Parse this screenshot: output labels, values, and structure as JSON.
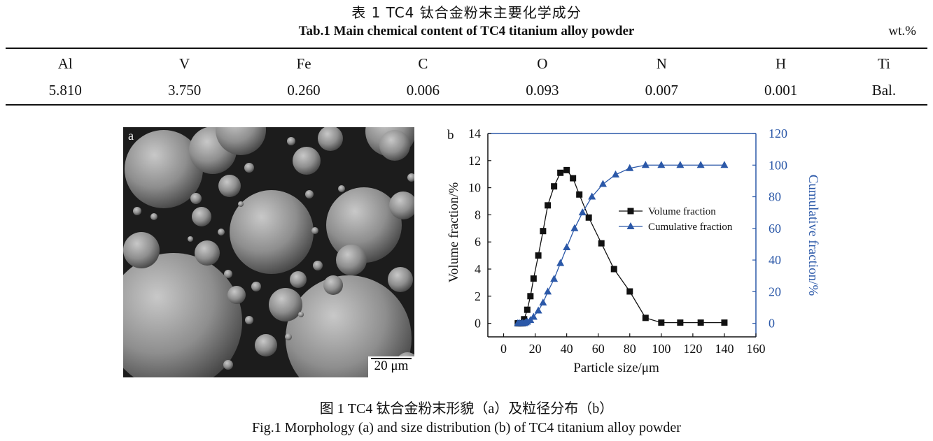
{
  "table": {
    "caption_cn": "表 1   TC4 钛合金粉末主要化学成分",
    "caption_en": "Tab.1 Main chemical content of TC4 titanium alloy powder",
    "unit": "wt.%",
    "headers": [
      "Al",
      "V",
      "Fe",
      "C",
      "O",
      "N",
      "H",
      "Ti"
    ],
    "values": [
      "5.810",
      "3.750",
      "0.260",
      "0.006",
      "0.093",
      "0.007",
      "0.001",
      "Bal."
    ]
  },
  "panel_a": {
    "label": "a",
    "scale_bar": "20 μm"
  },
  "chart_data": {
    "type": "line",
    "panel_label": "b",
    "xlabel": "Particle size/μm",
    "ylabel_left": "Volume fraction/%",
    "ylabel_right": "Cumulative fraction/%",
    "xlim": [
      -10,
      160
    ],
    "xticks": [
      0,
      20,
      40,
      60,
      80,
      100,
      120,
      140,
      160
    ],
    "ylim_left": [
      -1,
      14
    ],
    "yticks_left": [
      0,
      2,
      4,
      6,
      8,
      10,
      12,
      14
    ],
    "ylim_right": [
      -8.57,
      120
    ],
    "yticks_right": [
      0,
      20,
      40,
      60,
      80,
      100,
      120
    ],
    "legend_position": "center-right",
    "series": [
      {
        "name": "Volume fraction",
        "axis": "left",
        "color": "#111111",
        "marker": "square",
        "x": [
          9,
          10,
          11,
          12,
          13,
          15,
          17,
          19,
          22,
          25,
          28,
          32,
          36,
          40,
          44,
          48,
          54,
          62,
          70,
          80,
          90,
          100,
          112,
          125,
          140
        ],
        "y": [
          0,
          0,
          0,
          0,
          0.3,
          1.0,
          2.0,
          3.3,
          5.0,
          6.8,
          8.7,
          10.1,
          11.1,
          11.3,
          10.7,
          9.5,
          7.8,
          5.9,
          4.0,
          2.35,
          0.4,
          0.05,
          0.05,
          0.05,
          0.05
        ]
      },
      {
        "name": "Cumulative fraction",
        "axis": "right",
        "color": "#2b58a8",
        "marker": "triangle",
        "x": [
          9,
          10,
          11,
          12,
          13,
          14,
          15,
          17,
          19,
          22,
          25,
          28,
          32,
          36,
          40,
          45,
          50,
          56,
          63,
          71,
          80,
          90,
          100,
          112,
          125,
          140
        ],
        "y": [
          0,
          0,
          0,
          0,
          0,
          0.5,
          1,
          2,
          4,
          8,
          13,
          20,
          28,
          38,
          48,
          60,
          70,
          80,
          88,
          94,
          98,
          100,
          100,
          100,
          100,
          100
        ]
      }
    ]
  },
  "figure": {
    "caption_cn": "图 1   TC4 钛合金粉末形貌（a）及粒径分布（b）",
    "caption_en": "Fig.1 Morphology (a) and size distribution (b) of TC4 titanium alloy powder"
  }
}
